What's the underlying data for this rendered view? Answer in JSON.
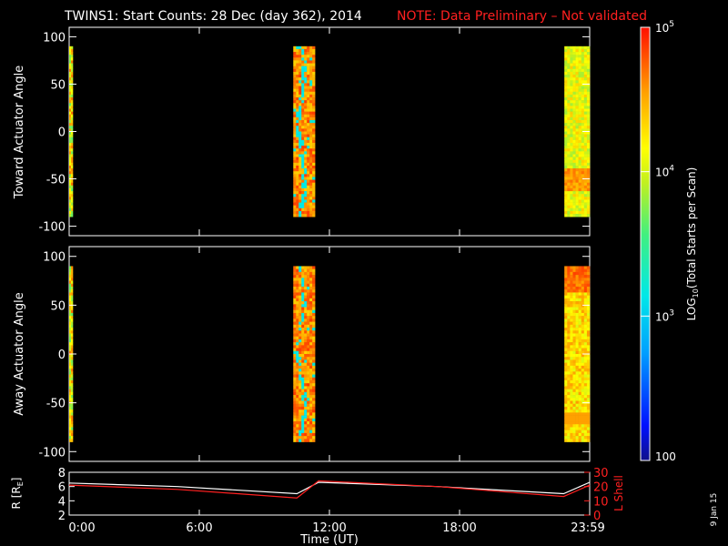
{
  "header": {
    "title": "TWINS1: Start Counts: 28 Dec (day 362), 2014",
    "note": "NOTE: Data Preliminary – Not validated",
    "title_color": "#ffffff",
    "note_color": "#ff2020"
  },
  "stamp": "9 Jan 15",
  "colorbar": {
    "label_parts": [
      "LOG",
      "10",
      "(Total Starts per Scan)"
    ],
    "ticks": [
      {
        "value": 100,
        "label": "100"
      },
      {
        "value": 1000,
        "label": "10",
        "exp": "3"
      },
      {
        "value": 10000,
        "label": "10",
        "exp": "4"
      },
      {
        "value": 100000,
        "label": "10",
        "exp": "5"
      }
    ],
    "range": [
      100,
      100000
    ],
    "scale": "log"
  },
  "chart_data": [
    {
      "type": "heatmap",
      "panel": "toward",
      "ylabel": "Toward Actuator Angle",
      "ylim": [
        -110,
        110
      ],
      "yticks": [
        -100,
        -50,
        0,
        50,
        100
      ],
      "xlim_hours": [
        0,
        24
      ],
      "blocks": [
        {
          "x_start": "0:00",
          "x_end": "0:05",
          "angle_range": [
            -90,
            90
          ],
          "level": "mixed yellow/green/orange",
          "log10_counts": 3.9
        },
        {
          "x_start": "10:20",
          "x_end": "11:20",
          "angle_range": [
            -90,
            90
          ],
          "level": "orange/red with cyan streaks",
          "log10_counts": 4.6
        },
        {
          "x_start": "22:50",
          "x_end": "23:59",
          "angle_range": [
            -90,
            90
          ],
          "level": "yellow/green, orange bands near -50",
          "log10_counts": 4.1
        }
      ]
    },
    {
      "type": "heatmap",
      "panel": "away",
      "ylabel": "Away Actuator Angle",
      "ylim": [
        -110,
        110
      ],
      "yticks": [
        -100,
        -50,
        0,
        50,
        100
      ],
      "xlim_hours": [
        0,
        24
      ],
      "blocks": [
        {
          "x_start": "0:00",
          "x_end": "0:05",
          "angle_range": [
            -90,
            90
          ],
          "level": "mixed yellow/green/orange",
          "log10_counts": 3.9
        },
        {
          "x_start": "10:20",
          "x_end": "11:20",
          "angle_range": [
            -90,
            90
          ],
          "level": "orange/red with cyan streaks",
          "log10_counts": 4.6
        },
        {
          "x_start": "22:50",
          "x_end": "23:59",
          "angle_range": [
            -90,
            90
          ],
          "level": "orange top, yellow middle",
          "log10_counts": 4.3
        }
      ]
    },
    {
      "type": "line",
      "panel": "orbit",
      "xlabel": "Time (UT)",
      "xticks": [
        "0:00",
        "6:00",
        "12:00",
        "18:00",
        "23:59"
      ],
      "ylabel_left_parts": [
        "R [R",
        "E",
        "]"
      ],
      "ylabel_right": "L Shell",
      "ylim_left": [
        2,
        8
      ],
      "yticks_left": [
        2,
        4,
        6,
        8
      ],
      "ylim_right": [
        0,
        30
      ],
      "yticks_right": [
        0,
        10,
        20,
        30
      ],
      "series": [
        {
          "axis": "left",
          "color": "#ffffff",
          "x_hours": [
            0,
            5,
            10.5,
            11.5,
            17,
            22.8,
            24
          ],
          "values": [
            6.5,
            6.0,
            5.0,
            6.6,
            6.0,
            5.0,
            6.6
          ]
        },
        {
          "axis": "right",
          "color": "#ff2020",
          "x_hours": [
            0,
            5,
            10.5,
            11.5,
            17,
            22.8,
            24
          ],
          "values": [
            21,
            18,
            12,
            24,
            20,
            13,
            21
          ]
        }
      ]
    }
  ]
}
